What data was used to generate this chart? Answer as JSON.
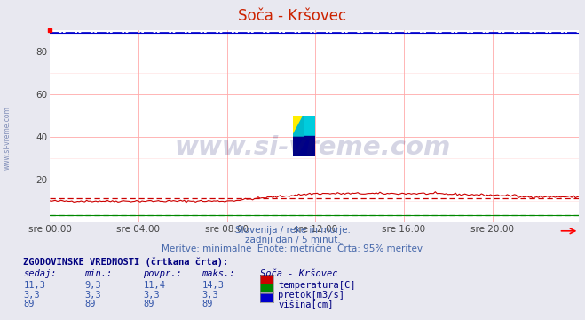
{
  "title": "Soča - Kršovec",
  "bg_color": "#e8e8f0",
  "plot_bg_color": "#ffffff",
  "x_labels": [
    "sre 00:00",
    "sre 04:00",
    "sre 08:00",
    "sre 12:00",
    "sre 16:00",
    "sre 20:00"
  ],
  "ylim": [
    0,
    90
  ],
  "yticks": [
    20,
    40,
    60,
    80
  ],
  "n_points": 288,
  "temp_color": "#cc0000",
  "pretok_color": "#008800",
  "visina_color": "#0000cc",
  "dashed_temp": 11.4,
  "dashed_pretok": 3.3,
  "dashed_visina": 89,
  "watermark": "www.si-vreme.com",
  "watermark_color": "#1a1a6e",
  "watermark_alpha": 0.18,
  "subtitle1": "Slovenija / reke in morje.",
  "subtitle2": "zadnji dan / 5 minut.",
  "subtitle3": "Meritve: minimalne  Enote: metrične  Črta: 95% meritev",
  "subtitle_color": "#4466aa",
  "table_title": "ZGODOVINSKE VREDNOSTI (črtkana črta):",
  "table_color": "#000080",
  "col_header": [
    "sedaj:",
    "min.:",
    "povpr.:",
    "maks.:",
    "Soča - Kršovec"
  ],
  "table_rows": [
    [
      "11,3",
      "9,3",
      "11,4",
      "14,3",
      "temperatura[C]",
      "#cc0000"
    ],
    [
      "3,3",
      "3,3",
      "3,3",
      "3,3",
      "pretok[m3/s]",
      "#008800"
    ],
    [
      "89",
      "89",
      "89",
      "89",
      "višina[cm]",
      "#0000cc"
    ]
  ],
  "left_label": "www.si-vreme.com",
  "left_label_color": "#6677aa",
  "title_color": "#cc2200"
}
